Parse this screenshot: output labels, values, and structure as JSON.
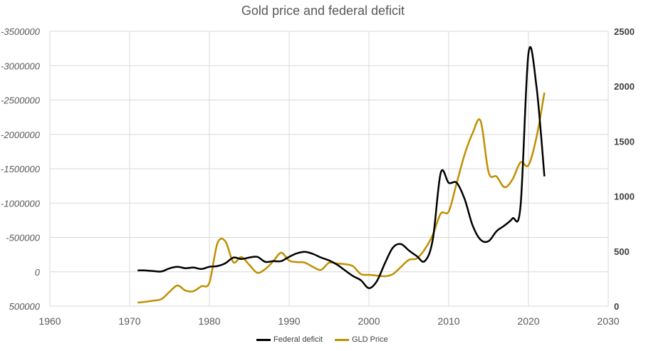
{
  "chart_data": {
    "type": "line",
    "title": "Gold price and federal deficit",
    "x_ticks": [
      1960,
      1970,
      1980,
      1990,
      2000,
      2010,
      2020,
      2030
    ],
    "xlim": [
      1960,
      2030
    ],
    "y_left": {
      "ticks": [
        -3500000,
        -3000000,
        -2500000,
        -2000000,
        -1500000,
        -1000000,
        -500000,
        0,
        500000
      ],
      "range": [
        500000,
        -3500000
      ],
      "reversed": true
    },
    "y_right": {
      "ticks": [
        0,
        500,
        1000,
        1500,
        2000,
        2500
      ],
      "range": [
        0,
        2500
      ]
    },
    "grid": true,
    "smoothed": true,
    "legend_position": "bottom",
    "x": [
      1971,
      1972,
      1973,
      1974,
      1975,
      1976,
      1977,
      1978,
      1979,
      1980,
      1981,
      1982,
      1983,
      1984,
      1985,
      1986,
      1987,
      1988,
      1989,
      1990,
      1991,
      1992,
      1993,
      1994,
      1995,
      1996,
      1997,
      1998,
      1999,
      2000,
      2001,
      2002,
      2003,
      2004,
      2005,
      2006,
      2007,
      2008,
      2009,
      2010,
      2011,
      2012,
      2013,
      2014,
      2015,
      2016,
      2017,
      2018,
      2019,
      2020,
      2021,
      2022
    ],
    "series": [
      {
        "name": "Federal deficit",
        "axis": "left",
        "color": "#000000",
        "values": [
          -20000,
          -20000,
          -10000,
          -5000,
          -50000,
          -72000,
          -52000,
          -62000,
          -41000,
          -73000,
          -83000,
          -124000,
          -207000,
          -187000,
          -207000,
          -218000,
          -145000,
          -155000,
          -155000,
          -218000,
          -270000,
          -290000,
          -259000,
          -207000,
          -166000,
          -104000,
          -21000,
          62000,
          124000,
          238000,
          135000,
          -124000,
          -352000,
          -404000,
          -311000,
          -228000,
          -155000,
          -466000,
          -1440000,
          -1295000,
          -1295000,
          -1057000,
          -674000,
          -466000,
          -446000,
          -591000,
          -674000,
          -777000,
          -953000,
          -3181000,
          -2700000,
          -1389000
        ]
      },
      {
        "name": "GLD Price",
        "axis": "right",
        "color": "#BF9000",
        "values": [
          32,
          40,
          50,
          65,
          130,
          188,
          142,
          136,
          181,
          214,
          570,
          590,
          400,
          447,
          376,
          304,
          337,
          408,
          486,
          414,
          401,
          395,
          356,
          330,
          395,
          388,
          382,
          363,
          291,
          285,
          278,
          272,
          291,
          356,
          421,
          434,
          518,
          648,
          842,
          861,
          1120,
          1380,
          1574,
          1684,
          1218,
          1179,
          1082,
          1153,
          1308,
          1282,
          1535,
          1943
        ]
      }
    ]
  }
}
